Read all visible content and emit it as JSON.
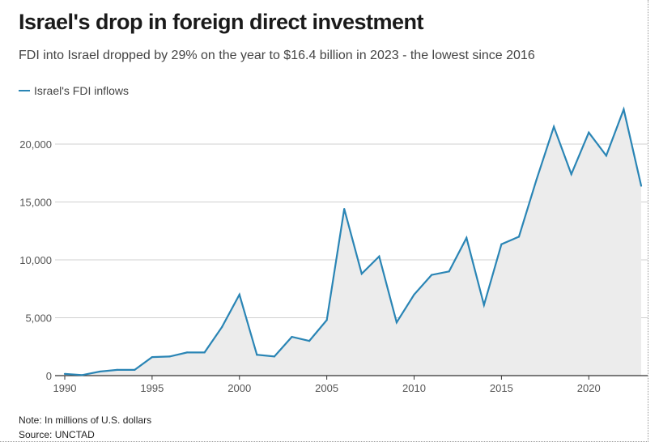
{
  "title": "Israel's drop in foreign direct investment",
  "subtitle": "FDI into Israel dropped by 29% on the year to $16.4 billion in 2023 - the lowest since 2016",
  "note": "Note: In millions of U.S. dollars",
  "source": "Source: UNCTAD",
  "colors": {
    "line": "#2a85b5",
    "area": "#ececec",
    "grid": "#d0d0d0",
    "axis": "#333333"
  },
  "chart_data": {
    "type": "line",
    "legend": {
      "position": "top-left",
      "entries": [
        "Israel's FDI inflows"
      ]
    },
    "grid": true,
    "x": [
      1990,
      1991,
      1992,
      1993,
      1994,
      1995,
      1996,
      1997,
      1998,
      1999,
      2000,
      2001,
      2002,
      2003,
      2004,
      2005,
      2006,
      2007,
      2008,
      2009,
      2010,
      2011,
      2012,
      2013,
      2014,
      2015,
      2016,
      2017,
      2018,
      2019,
      2020,
      2021,
      2022,
      2023
    ],
    "series": [
      {
        "name": "Israel's FDI inflows",
        "values": [
          150,
          50,
          350,
          500,
          500,
          1600,
          1650,
          2000,
          2000,
          4200,
          7000,
          1800,
          1650,
          3350,
          3000,
          4800,
          14400,
          8800,
          10300,
          4600,
          7000,
          8700,
          9000,
          11900,
          6100,
          11350,
          12000,
          16900,
          21500,
          17400,
          21000,
          19000,
          23000,
          16400
        ]
      }
    ],
    "xlim": [
      1990,
      2023
    ],
    "ylim": [
      0,
      23000
    ],
    "xticks": [
      1990,
      1995,
      2000,
      2005,
      2010,
      2015,
      2020
    ],
    "yticks": [
      0,
      5000,
      10000,
      15000,
      20000
    ],
    "ytick_labels": [
      "0",
      "5,000",
      "10,000",
      "15,000",
      "20,000"
    ]
  }
}
